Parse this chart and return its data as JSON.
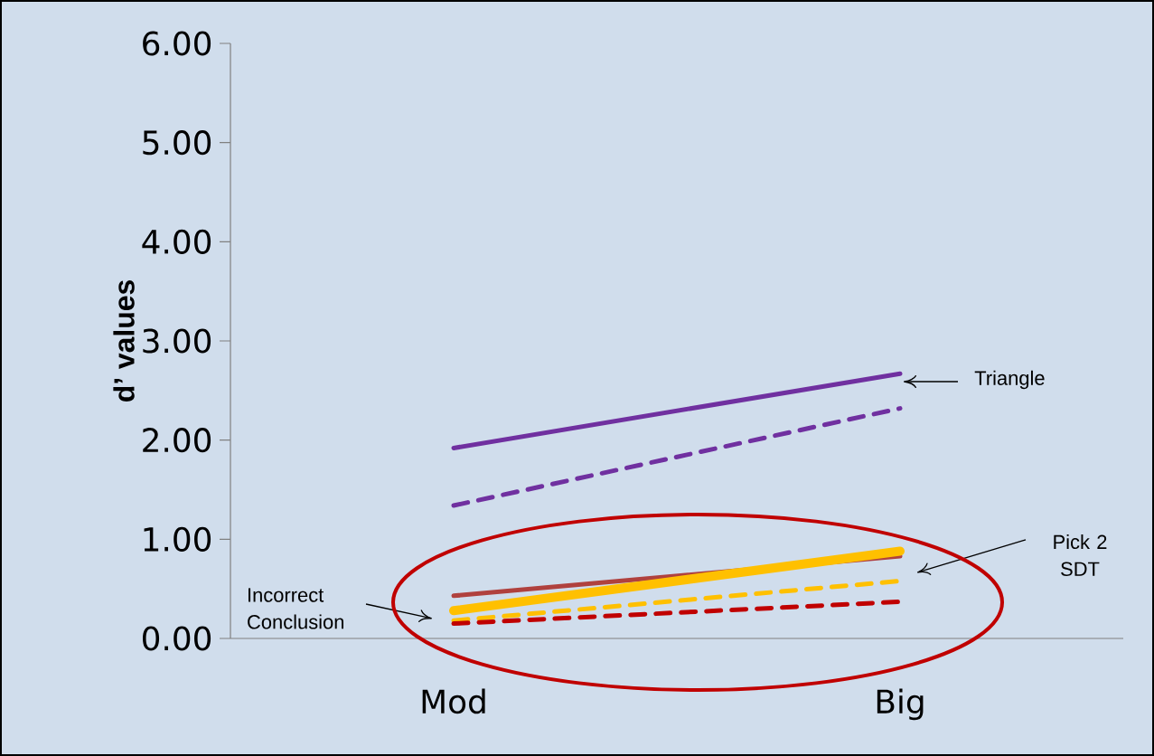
{
  "chart_data": {
    "type": "line",
    "ylabel": "d’ values",
    "categories": [
      "Mod",
      "Big"
    ],
    "series": [
      {
        "color": "#7030a0",
        "line_style": "solid",
        "values": [
          1.92,
          2.67
        ]
      },
      {
        "color": "#7030a0",
        "line_style": "dashed",
        "values": [
          1.34,
          2.32
        ]
      },
      {
        "color": "#b0413e",
        "line_style": "solid",
        "values": [
          0.43,
          0.83
        ]
      },
      {
        "color": "#ffc000",
        "line_style": "solid",
        "values": [
          0.28,
          0.88
        ]
      },
      {
        "color": "#ffc000",
        "line_style": "dashed",
        "values": [
          0.18,
          0.58
        ]
      },
      {
        "color": "#c00000",
        "line_style": "dashed",
        "values": [
          0.15,
          0.37
        ]
      }
    ],
    "ylim": [
      0,
      6
    ],
    "yticks": [
      {
        "value": 0,
        "label": "0.00"
      },
      {
        "value": 1,
        "label": "1.00"
      },
      {
        "value": 2,
        "label": "2.00"
      },
      {
        "value": 3,
        "label": "3.00"
      },
      {
        "value": 4,
        "label": "4.00"
      },
      {
        "value": 5,
        "label": "5.00"
      },
      {
        "value": 6,
        "label": "6.00"
      }
    ],
    "annotations": [
      "Triangle",
      "Pick 2 SDT",
      "Incorrect Conclusion"
    ],
    "grid": false
  }
}
